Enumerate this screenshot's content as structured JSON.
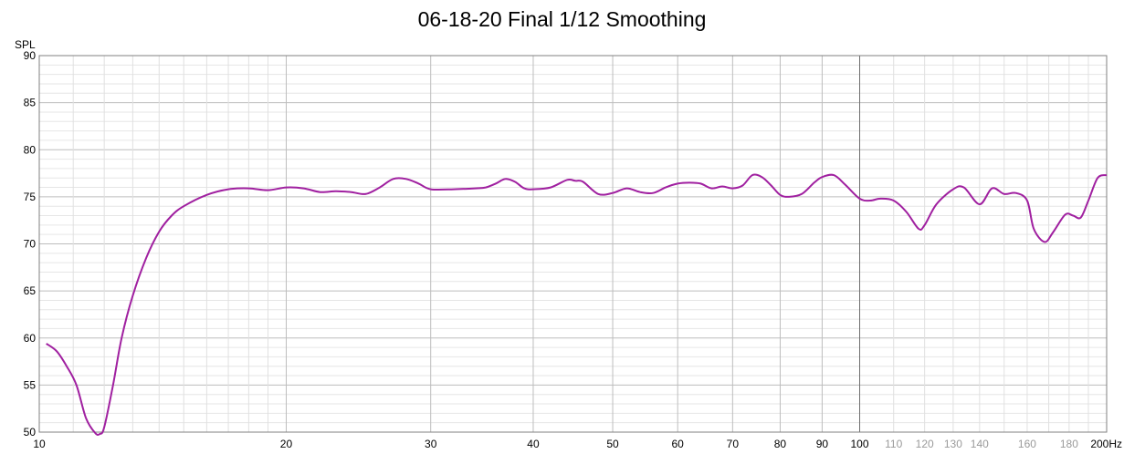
{
  "chart_data": {
    "type": "line",
    "title": "06-18-20 Final 1/12 Smoothing",
    "ylabel": "SPL",
    "xunit": "Hz",
    "xscale": "log",
    "xlim": [
      10,
      200
    ],
    "ylim": [
      50,
      90
    ],
    "grid": true,
    "x_ticks_major": [
      "10",
      "20",
      "30",
      "40",
      "50",
      "60",
      "70",
      "80",
      "90",
      "100"
    ],
    "x_ticks_minor": [
      "110",
      "120",
      "130",
      "140",
      "160",
      "180"
    ],
    "x_tick_last": "200",
    "y_ticks": [
      "50",
      "55",
      "60",
      "65",
      "70",
      "75",
      "80",
      "85",
      "90"
    ],
    "series": [
      {
        "color": "#a020a0",
        "x": [
          10.2,
          10.5,
          10.8,
          11.1,
          11.4,
          11.7,
          11.85,
          12.0,
          12.3,
          12.6,
          13.0,
          13.5,
          14.0,
          14.5,
          15.0,
          16.0,
          17.0,
          18.0,
          19.0,
          20.0,
          21.0,
          22.0,
          23.0,
          24.0,
          25.0,
          26.0,
          27.0,
          28.0,
          29.0,
          30.0,
          32.0,
          34.0,
          35.0,
          36.0,
          37.0,
          38.0,
          39.0,
          40.0,
          42.0,
          44.0,
          45.0,
          46.0,
          48.0,
          50.0,
          52.0,
          54.0,
          56.0,
          58.0,
          60.0,
          62.0,
          64.0,
          66.0,
          68.0,
          70.0,
          72.0,
          74.0,
          76.0,
          78.0,
          80.0,
          82.0,
          85.0,
          88.0,
          90.0,
          93.0,
          96.0,
          100.0,
          103.0,
          106.0,
          110.0,
          114.0,
          118.0,
          120.0,
          124.0,
          130.0,
          134.0,
          140.0,
          145.0,
          150.0,
          155.0,
          160.0,
          163.0,
          168.0,
          172.0,
          178.0,
          182.0,
          186.0,
          190.0,
          195.0,
          200.0
        ],
        "y": [
          59.4,
          58.6,
          57.0,
          55.0,
          51.5,
          49.9,
          49.8,
          50.5,
          55.0,
          60.0,
          64.5,
          68.5,
          71.3,
          73.0,
          74.0,
          75.2,
          75.8,
          75.9,
          75.7,
          76.0,
          75.9,
          75.5,
          75.6,
          75.5,
          75.3,
          76.0,
          76.9,
          76.9,
          76.4,
          75.8,
          75.8,
          75.9,
          76.0,
          76.4,
          76.9,
          76.6,
          75.9,
          75.8,
          76.0,
          76.8,
          76.7,
          76.6,
          75.3,
          75.4,
          75.9,
          75.5,
          75.4,
          76.0,
          76.4,
          76.5,
          76.4,
          75.9,
          76.1,
          75.9,
          76.2,
          77.3,
          77.1,
          76.2,
          75.2,
          75.0,
          75.3,
          76.5,
          77.1,
          77.3,
          76.3,
          74.8,
          74.6,
          74.8,
          74.6,
          73.4,
          71.6,
          72.0,
          74.2,
          75.8,
          76.0,
          74.2,
          75.9,
          75.3,
          75.4,
          74.6,
          71.6,
          70.2,
          71.2,
          73.1,
          73.0,
          72.8,
          74.6,
          77.0,
          77.3
        ]
      }
    ]
  }
}
